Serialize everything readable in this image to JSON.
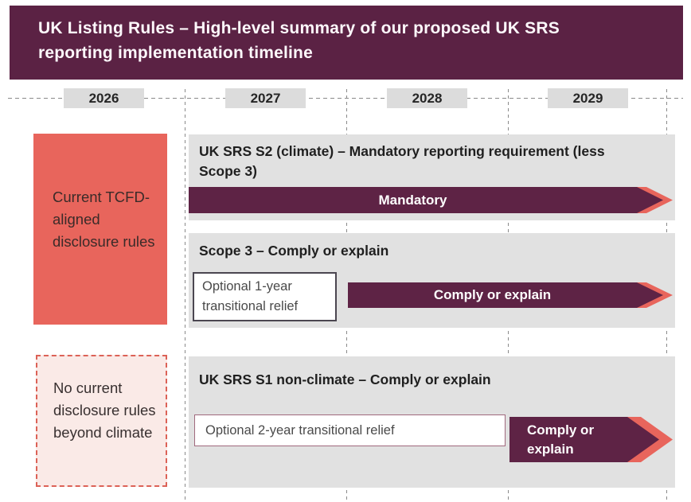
{
  "header": {
    "title": "UK Listing Rules – High-level summary of our proposed UK SRS reporting implementation timeline"
  },
  "timeline": {
    "years": [
      "2026",
      "2027",
      "2028",
      "2029"
    ]
  },
  "left_column": {
    "current_rules_box": {
      "text": "Current TCFD-aligned disclosure rules"
    },
    "no_rules_box": {
      "text": "No current disclosure rules beyond climate"
    }
  },
  "rows": [
    {
      "title": "UK SRS S2 (climate) – Mandatory reporting requirement (less Scope 3)",
      "bar_label": "Mandatory"
    },
    {
      "title": "Scope 3 – Comply or explain",
      "relief_label": "Optional 1-year transitional relief",
      "bar_label": "Comply or explain"
    },
    {
      "title": "UK SRS S1 non-climate – Comply or explain",
      "relief_label": "Optional 2-year transitional relief",
      "bar_label": "Comply or explain"
    }
  ],
  "colors": {
    "header_maroon": "#5b2244",
    "bar_maroon": "#5e2345",
    "accent_salmon": "#e8655c",
    "light_pink_bg": "#faeae7",
    "panel_gray": "#e1e1e1",
    "year_box_gray": "#dcdcdc",
    "dash_gray": "#8a8a8a"
  }
}
